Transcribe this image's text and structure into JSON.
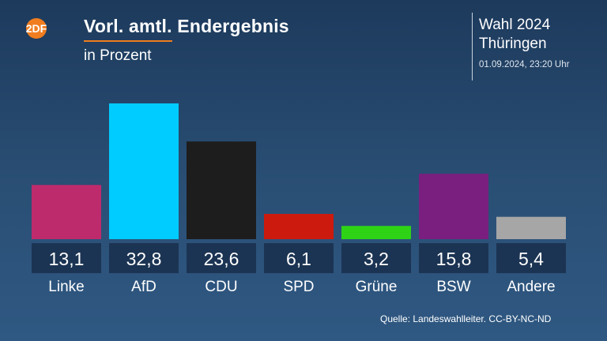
{
  "header": {
    "logo_text": "2DF",
    "title": "Vorl. amtl. Endergebnis",
    "subtitle": "in Prozent",
    "election_line1": "Wahl 2024",
    "election_line2": "Thüringen",
    "datetime": "01.09.2024, 23:20 Uhr"
  },
  "chart_data": {
    "type": "bar",
    "title": "Vorl. amtl. Endergebnis",
    "subtitle": "in Prozent",
    "xlabel": "",
    "ylabel": "",
    "ylim": [
      0,
      35
    ],
    "grid": false,
    "categories": [
      "Linke",
      "AfD",
      "CDU",
      "SPD",
      "Grüne",
      "BSW",
      "Andere"
    ],
    "values": [
      13.1,
      32.8,
      23.6,
      6.1,
      3.2,
      15.8,
      5.4
    ],
    "value_labels": [
      "13,1",
      "32,8",
      "23,6",
      "6,1",
      "3,2",
      "15,8",
      "5,4"
    ],
    "colors": [
      "#be2b6c",
      "#00ccff",
      "#1d1d1d",
      "#cc1a0e",
      "#2ed316",
      "#7a1f7f",
      "#a6a6a6"
    ]
  },
  "footer": {
    "source": "Quelle: Landeswahlleiter. CC-BY-NC-ND"
  },
  "colors": {
    "accent": "#f07d1f",
    "value_box": "#1c3453"
  }
}
